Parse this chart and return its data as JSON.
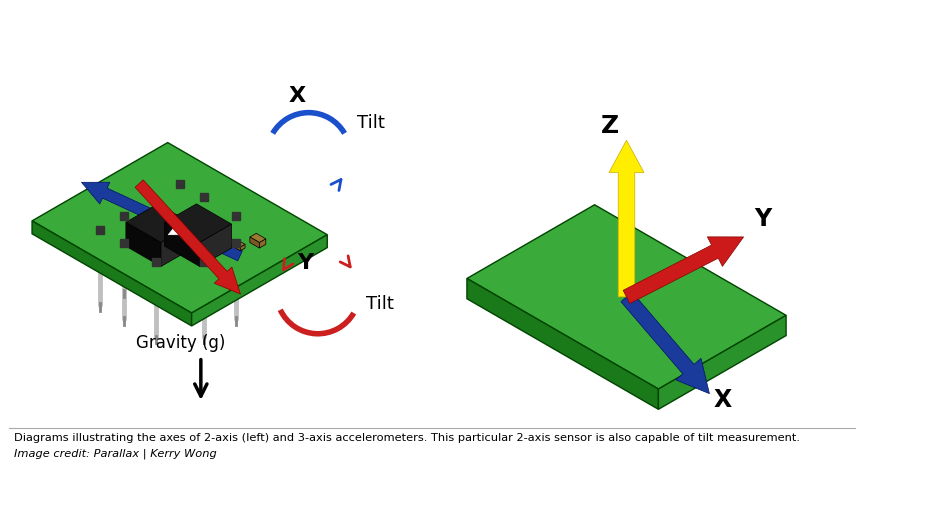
{
  "caption_line1": "Diagrams illustrating the axes of 2-axis (left) and 3-axis accelerometers. This particular 2-axis sensor is also capable of tilt measurement.",
  "caption_line2": "Image credit: Parallax | Kerry Wong",
  "background_color": "#ffffff",
  "gravity_label": "Gravity (g)",
  "x_tilt_label": "X",
  "y_tilt_label": "Y",
  "tilt_label": "Tilt",
  "axis_z_label": "Z",
  "axis_y_label": "Y",
  "axis_x_label": "X",
  "board_green_top": "#3aaa3a",
  "board_green_front": "#1a7a1a",
  "board_green_right": "#2a922a",
  "board_green_dark": "#0d5c0d",
  "arrow_blue": "#1a3a9c",
  "arrow_red": "#cc1a1a",
  "arrow_yellow": "#ffee00",
  "tilt_blue": "#1a50cc",
  "tilt_red": "#cc2020",
  "pin_color": "#c0c0c0",
  "pin_tip": "#e0e0e0",
  "chip_top": "#1a1a1a",
  "chip_front": "#0a0a0a",
  "chip_right": "#2a2a2a"
}
